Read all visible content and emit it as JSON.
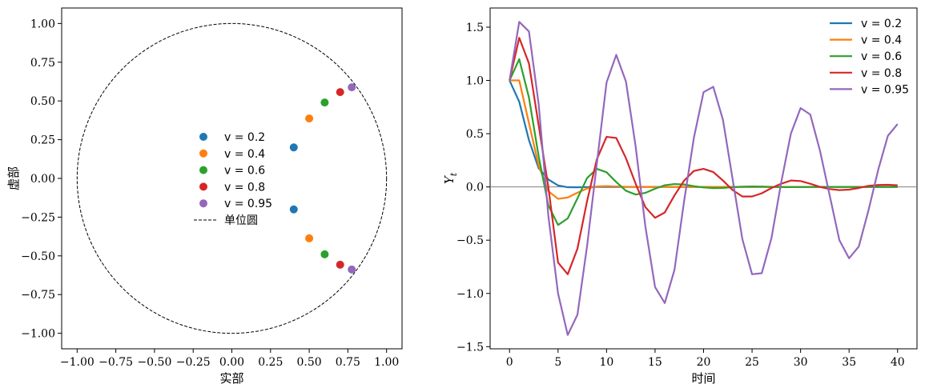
{
  "chart_data": [
    {
      "type": "scatter",
      "title": "",
      "xlabel": "实部",
      "ylabel": "虚部",
      "xlim": [
        -1.1,
        1.1
      ],
      "ylim": [
        -1.1,
        1.1
      ],
      "xticks": [
        "−1.00",
        "−0.75",
        "−0.50",
        "−0.25",
        "0.00",
        "0.25",
        "0.50",
        "0.75",
        "1.00"
      ],
      "yticks": [
        "−1.00",
        "−0.75",
        "−0.50",
        "−0.25",
        "0.00",
        "0.25",
        "0.50",
        "0.75",
        "1.00"
      ],
      "xtick_values": [
        -1,
        -0.75,
        -0.5,
        -0.25,
        0,
        0.25,
        0.5,
        0.75,
        1
      ],
      "ytick_values": [
        -1,
        -0.75,
        -0.5,
        -0.25,
        0,
        0.25,
        0.5,
        0.75,
        1
      ],
      "grid": false,
      "legend_position": "center",
      "unit_circle": {
        "label": "单位圆",
        "radius": 1,
        "style": "dashed",
        "color": "#000000"
      },
      "series": [
        {
          "name": "v = 0.2",
          "legend_label": "v = 0.2",
          "color": "#1f77b4",
          "points": [
            [
              0.4,
              0.2
            ],
            [
              0.4,
              -0.2
            ]
          ]
        },
        {
          "name": "v = 0.4",
          "legend_label": "v = 0.4",
          "color": "#ff7f0e",
          "points": [
            [
              0.5,
              0.387
            ],
            [
              0.5,
              -0.387
            ]
          ]
        },
        {
          "name": "v = 0.6",
          "legend_label": "v = 0.6",
          "color": "#2ca02c",
          "points": [
            [
              0.6,
              0.49
            ],
            [
              0.6,
              -0.49
            ]
          ]
        },
        {
          "name": "v = 0.8",
          "legend_label": "v = 0.8",
          "color": "#d62728",
          "points": [
            [
              0.7,
              0.557
            ],
            [
              0.7,
              -0.557
            ]
          ]
        },
        {
          "name": "v = 0.95",
          "legend_label": "v = 0.95",
          "color": "#9467bd",
          "points": [
            [
              0.775,
              0.588
            ],
            [
              0.775,
              -0.588
            ]
          ]
        }
      ]
    },
    {
      "type": "line",
      "title": "",
      "xlabel": "时间",
      "ylabel": "Y",
      "ylabel_subscript": "t",
      "xlim": [
        -2,
        42
      ],
      "ylim": [
        -1.52,
        1.68
      ],
      "xticks": [
        "0",
        "5",
        "10",
        "15",
        "20",
        "25",
        "30",
        "35",
        "40"
      ],
      "yticks": [
        "−1.5",
        "−1.0",
        "−0.5",
        "0.0",
        "0.5",
        "1.0",
        "1.5"
      ],
      "xtick_values": [
        0,
        5,
        10,
        15,
        20,
        25,
        30,
        35,
        40
      ],
      "ytick_values": [
        -1.5,
        -1.0,
        -0.5,
        0.0,
        0.5,
        1.0,
        1.5
      ],
      "grid": false,
      "legend_position": "top-right",
      "reference_line": {
        "y": 0,
        "color": "#808080"
      },
      "x": [
        0,
        1,
        2,
        3,
        4,
        5,
        6,
        7,
        8,
        9,
        10,
        11,
        12,
        13,
        14,
        15,
        16,
        17,
        18,
        19,
        20,
        21,
        22,
        23,
        24,
        25,
        26,
        27,
        28,
        29,
        30,
        31,
        32,
        33,
        34,
        35,
        36,
        37,
        38,
        39,
        40
      ],
      "series": [
        {
          "name": "v = 0.2",
          "legend_label": "v = 0.2",
          "color": "#1f77b4",
          "values": [
            1.0,
            0.8,
            0.44,
            0.176,
            0.0704,
            0.0141,
            -0.0028,
            -0.0034,
            -0.0013,
            -0.0001,
            0.0002,
            0.0001,
            0,
            0,
            0,
            0,
            0,
            0,
            0,
            0,
            0,
            0,
            0,
            0,
            0,
            0,
            0,
            0,
            0,
            0,
            0,
            0,
            0,
            0,
            0,
            0,
            0,
            0,
            0,
            0,
            0
          ]
        },
        {
          "name": "v = 0.4",
          "legend_label": "v = 0.4",
          "color": "#ff7f0e",
          "values": [
            1.0,
            1.0,
            0.6,
            0.2,
            -0.04,
            -0.112,
            -0.0992,
            -0.0544,
            -0.0147,
            0.0041,
            0.0074,
            0.0046,
            0.0015,
            -0.0001,
            -0.0004,
            -0.0003,
            -0.0001,
            0,
            0,
            0,
            0,
            0,
            0,
            0,
            0,
            0,
            0,
            0,
            0,
            0,
            0,
            0,
            0,
            0,
            0,
            0,
            0,
            0,
            0,
            0,
            0
          ]
        },
        {
          "name": "v = 0.6",
          "legend_label": "v = 0.6",
          "color": "#2ca02c",
          "values": [
            1.0,
            1.2,
            0.84,
            0.288,
            -0.1728,
            -0.3571,
            -0.2954,
            -0.1072,
            0.0841,
            0.1695,
            0.1377,
            0.0458,
            -0.0358,
            -0.0716,
            -0.0558,
            -0.0165,
            0.0159,
            0.0271,
            0.0228,
            0.0072,
            -0.005,
            -0.0109,
            -0.0091,
            -0.0026,
            0.0024,
            0.0043,
            0.0033,
            0.0008,
            -0.0012,
            -0.0017,
            -0.0011,
            -0.0002,
            0.0005,
            0.0006,
            0.0004,
            0,
            -0.0002,
            -0.0002,
            -0.0001,
            0,
            0.0001
          ]
        },
        {
          "name": "v = 0.8",
          "legend_label": "v = 0.8",
          "color": "#d62728",
          "values": [
            1.0,
            1.4,
            1.16,
            0.58,
            -0.0,
            -0.71,
            -0.82,
            -0.58,
            -0.13,
            0.26,
            0.47,
            0.46,
            0.27,
            0.03,
            -0.19,
            -0.29,
            -0.24,
            -0.08,
            0.06,
            0.15,
            0.17,
            0.14,
            0.06,
            -0.03,
            -0.09,
            -0.09,
            -0.06,
            -0.01,
            0.03,
            0.06,
            0.055,
            0.03,
            0.0,
            -0.02,
            -0.03,
            -0.025,
            -0.01,
            0.01,
            0.018,
            0.02,
            0.015
          ]
        },
        {
          "name": "v = 0.95",
          "legend_label": "v = 0.95",
          "color": "#9467bd",
          "values": [
            1.0,
            1.55,
            1.46,
            0.78,
            -0.27,
            -1.0,
            -1.39,
            -1.2,
            -0.55,
            0.22,
            0.98,
            1.24,
            0.99,
            0.38,
            -0.37,
            -0.94,
            -1.09,
            -0.78,
            -0.13,
            0.46,
            0.89,
            0.94,
            0.63,
            0.07,
            -0.49,
            -0.82,
            -0.81,
            -0.48,
            0.04,
            0.5,
            0.74,
            0.68,
            0.34,
            -0.08,
            -0.5,
            -0.67,
            -0.56,
            -0.22,
            0.16,
            0.48,
            0.59
          ]
        }
      ]
    }
  ]
}
